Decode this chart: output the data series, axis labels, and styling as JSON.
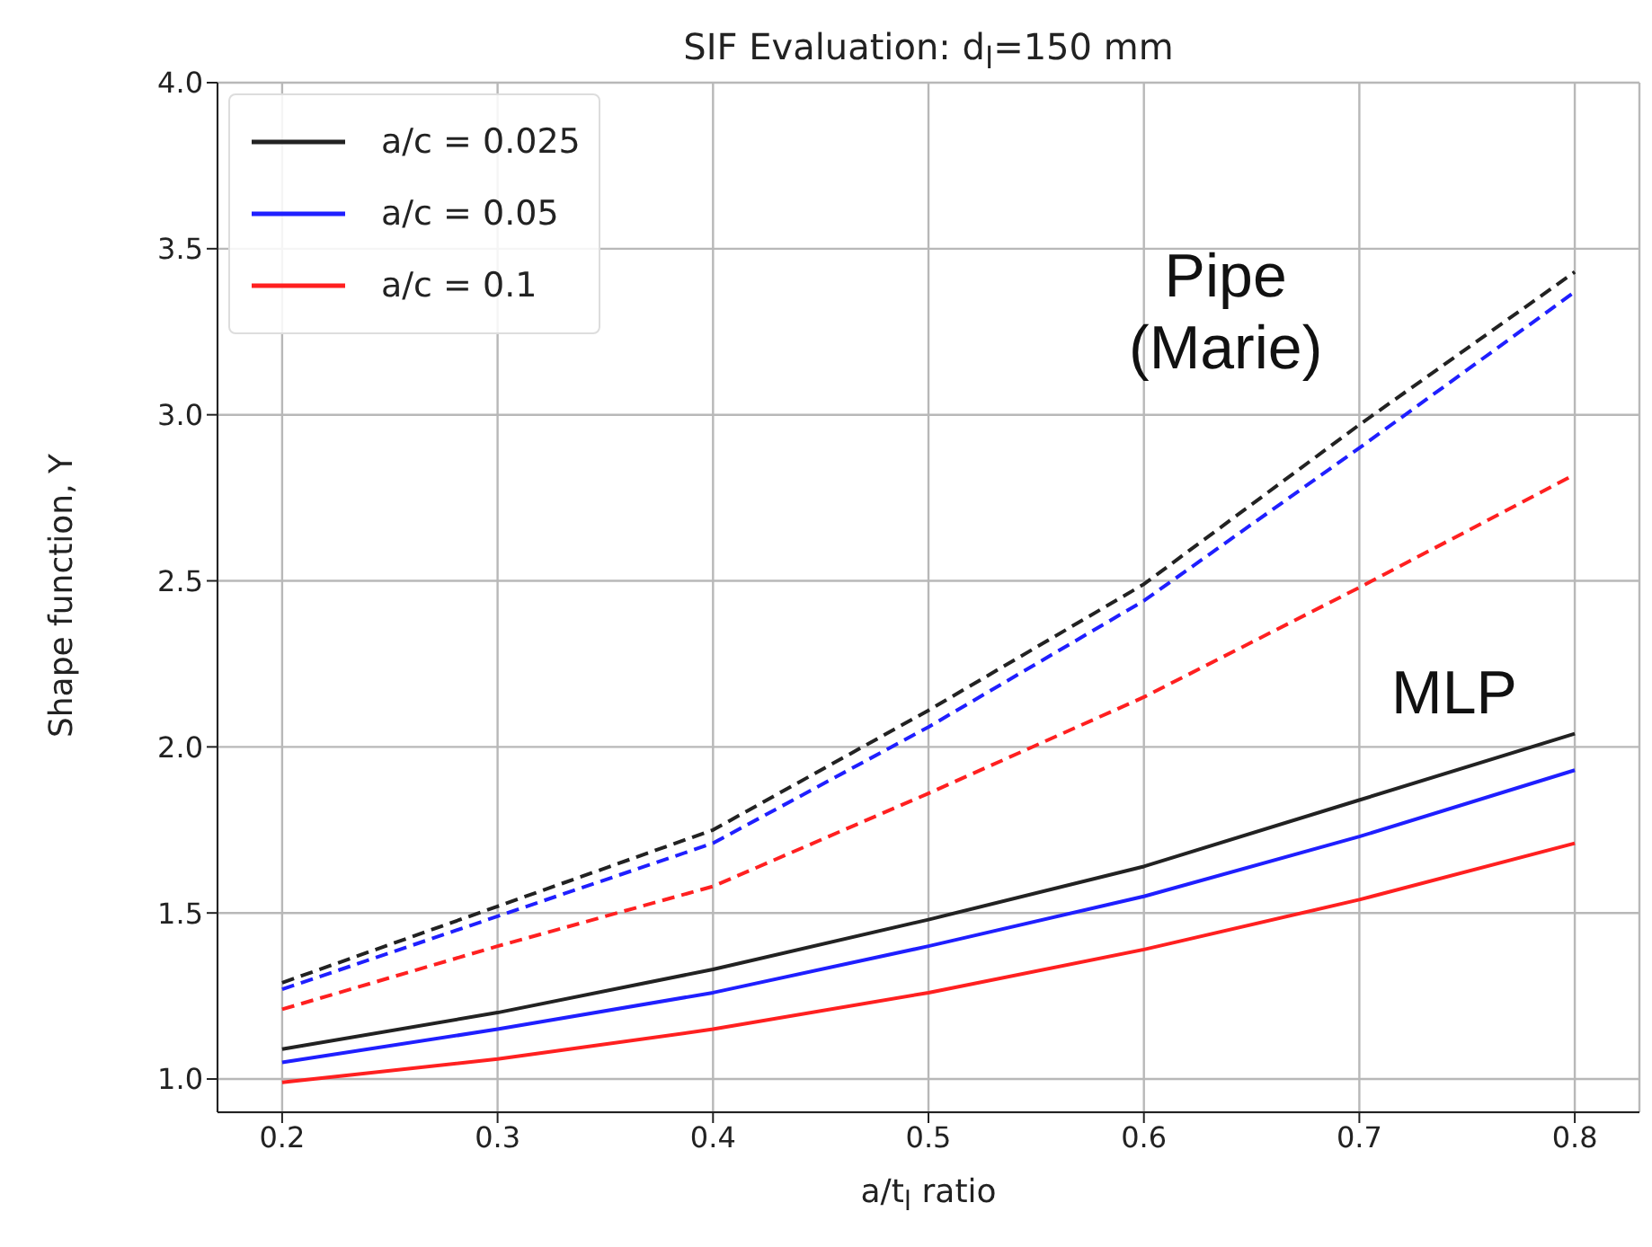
{
  "chart_data": {
    "type": "line",
    "title": "SIF Evaluation: d$_{l}$=150 mm",
    "xlabel": "a/t$_{l}$ ratio",
    "ylabel": "Shape function, Y",
    "x": [
      0.2,
      0.3,
      0.4,
      0.5,
      0.6,
      0.7,
      0.8
    ],
    "series": [
      {
        "name": "a/c = 0.025",
        "color": "#222222",
        "line_style": "solid",
        "values": [
          1.09,
          1.2,
          1.33,
          1.48,
          1.64,
          1.84,
          2.04
        ]
      },
      {
        "name": "a/c = 0.05",
        "color": "#1f1fff",
        "line_style": "solid",
        "values": [
          1.05,
          1.15,
          1.26,
          1.4,
          1.55,
          1.73,
          1.93
        ]
      },
      {
        "name": "a/c = 0.1",
        "color": "#ff2020",
        "line_style": "solid",
        "values": [
          0.99,
          1.06,
          1.15,
          1.26,
          1.39,
          1.54,
          1.71
        ]
      },
      {
        "color": "#222222",
        "line_style": "dashed",
        "values": [
          1.29,
          1.52,
          1.75,
          2.11,
          2.49,
          2.97,
          3.43
        ]
      },
      {
        "color": "#1f1fff",
        "line_style": "dashed",
        "values": [
          1.27,
          1.49,
          1.71,
          2.06,
          2.44,
          2.9,
          3.37
        ]
      },
      {
        "color": "#ff2020",
        "line_style": "dashed",
        "values": [
          1.21,
          1.4,
          1.58,
          1.86,
          2.15,
          2.48,
          2.82
        ]
      }
    ],
    "xlim": [
      0.17,
      0.83
    ],
    "xticks": [
      0.2,
      0.3,
      0.4,
      0.5,
      0.6,
      0.7,
      0.8
    ],
    "ylim": [
      0.9,
      4.0
    ],
    "yticks": [
      {
        "value": 1,
        "label": "1.0"
      },
      1.5,
      {
        "value": 2,
        "label": "2.0"
      },
      2.5,
      {
        "value": 3,
        "label": "3.0"
      },
      3.5,
      {
        "value": 4,
        "label": "4.0"
      }
    ],
    "annotations": [
      "Pipe\n(Marie)",
      "MLP"
    ],
    "grid": true,
    "legend": "top left",
    "marker": "none"
  }
}
